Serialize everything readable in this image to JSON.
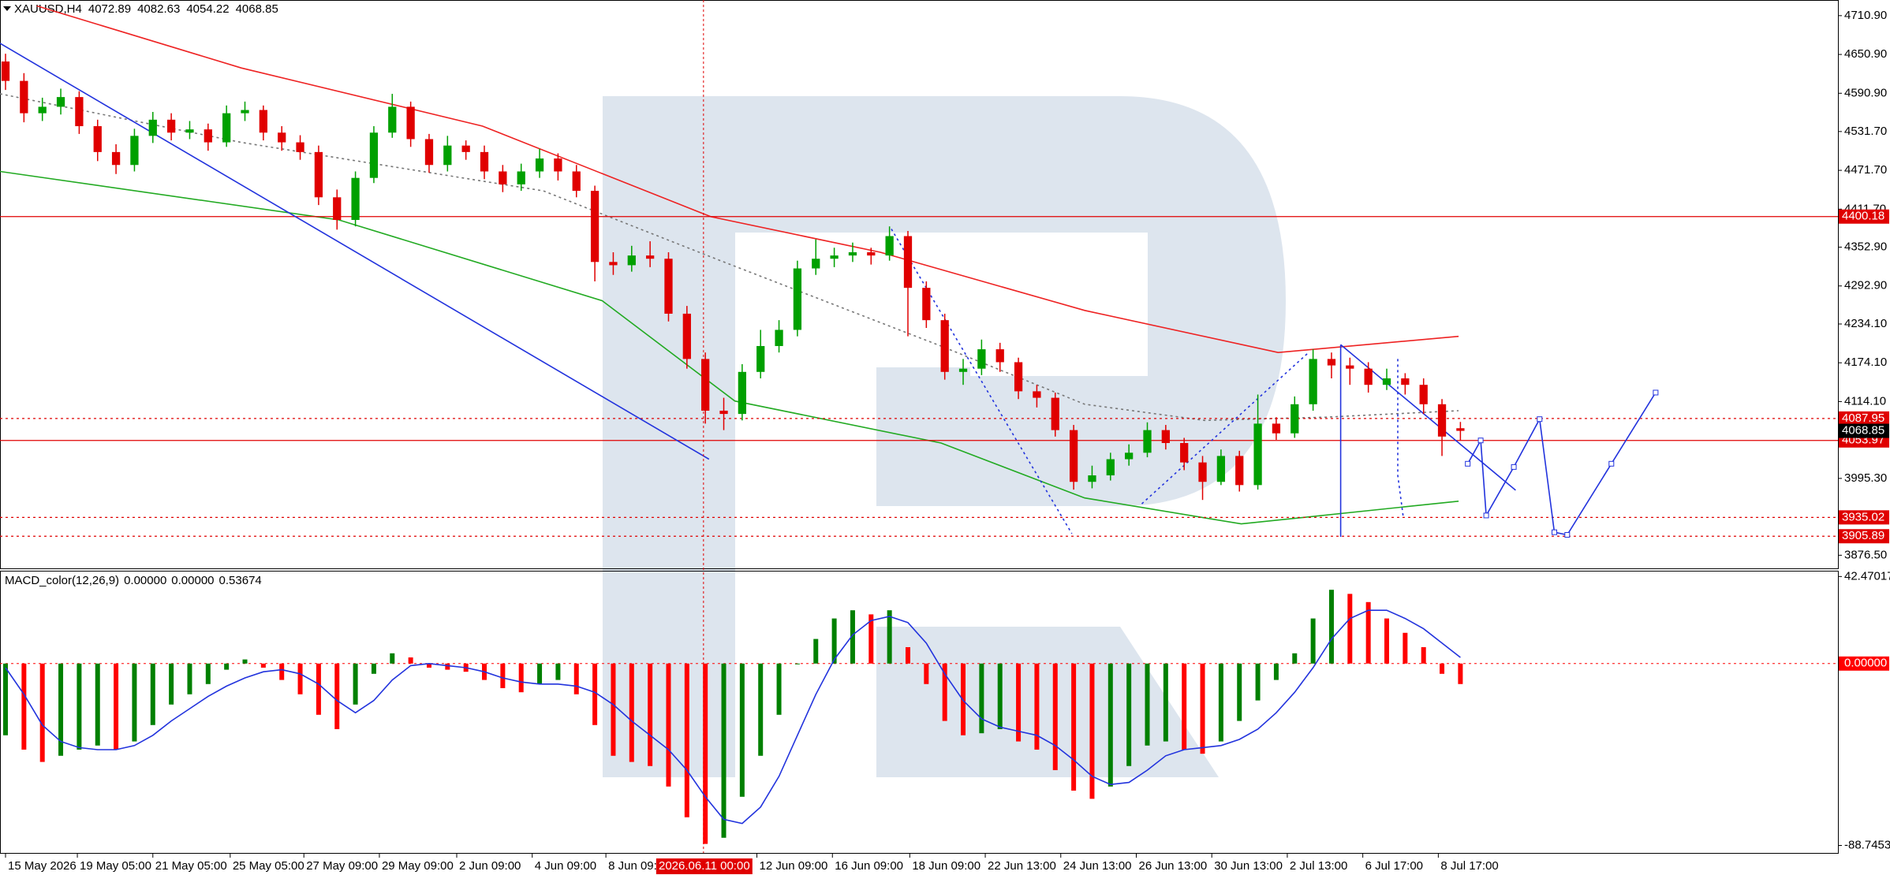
{
  "chart_data": [
    {
      "type": "candlestick",
      "title": "XAUUSD,H4",
      "up_color": "#00a000",
      "down_color": "#e00000",
      "open": [
        4640,
        4610,
        4560,
        4570,
        4585,
        4540,
        4500,
        4480,
        4525,
        4550,
        4530,
        4535,
        4515,
        4560,
        4565,
        4530,
        4515,
        4500,
        4430,
        4395,
        4460,
        4530,
        4570,
        4520,
        4480,
        4510,
        4500,
        4470,
        4450,
        4470,
        4490,
        4470,
        4440,
        4330,
        4325,
        4340,
        4335,
        4250,
        4180,
        4100,
        4095,
        4160,
        4200,
        4225,
        4320,
        4335,
        4340,
        4345,
        4340,
        4370,
        4290,
        4240,
        4160,
        4165,
        4195,
        4175,
        4130,
        4120,
        4070,
        3990,
        4000,
        4025,
        4035,
        4070,
        4050,
        4020,
        3990,
        4030,
        3985,
        4080,
        4065,
        4110,
        4180,
        4170,
        4165,
        4140,
        4150,
        4140,
        4110,
        4072.89
      ],
      "high": [
        4652,
        4622,
        4584,
        4598,
        4594,
        4550,
        4512,
        4536,
        4562,
        4560,
        4548,
        4544,
        4572,
        4578,
        4572,
        4540,
        4526,
        4510,
        4442,
        4470,
        4540,
        4590,
        4578,
        4528,
        4525,
        4518,
        4510,
        4480,
        4482,
        4505,
        4498,
        4480,
        4448,
        4345,
        4355,
        4362,
        4345,
        4262,
        4190,
        4120,
        4172,
        4225,
        4240,
        4332,
        4365,
        4352,
        4360,
        4352,
        4385,
        4378,
        4300,
        4250,
        4180,
        4210,
        4205,
        4182,
        4140,
        4128,
        4078,
        4015,
        4035,
        4048,
        4082,
        4078,
        4058,
        4030,
        4040,
        4038,
        4125,
        4090,
        4122,
        4195,
        4190,
        4182,
        4175,
        4165,
        4158,
        4150,
        4118,
        4082.63
      ],
      "low": [
        4596,
        4546,
        4548,
        4558,
        4528,
        4486,
        4466,
        4470,
        4514,
        4518,
        4520,
        4502,
        4508,
        4548,
        4518,
        4502,
        4488,
        4418,
        4380,
        4385,
        4452,
        4522,
        4508,
        4468,
        4470,
        4488,
        4458,
        4438,
        4440,
        4460,
        4456,
        4430,
        4300,
        4310,
        4315,
        4322,
        4238,
        4165,
        4080,
        4070,
        4085,
        4150,
        4190,
        4215,
        4310,
        4322,
        4330,
        4326,
        4332,
        4215,
        4228,
        4148,
        4140,
        4155,
        4160,
        4118,
        4105,
        4060,
        3978,
        3980,
        3992,
        4015,
        4028,
        4040,
        4008,
        3962,
        3985,
        3975,
        3978,
        4055,
        4058,
        4100,
        4150,
        4140,
        4128,
        4132,
        4125,
        4095,
        4030,
        4054.22
      ],
      "close": [
        4610,
        4560,
        4570,
        4585,
        4540,
        4500,
        4480,
        4525,
        4550,
        4530,
        4535,
        4515,
        4560,
        4565,
        4530,
        4515,
        4500,
        4430,
        4395,
        4460,
        4530,
        4570,
        4520,
        4480,
        4510,
        4500,
        4470,
        4450,
        4470,
        4490,
        4470,
        4440,
        4330,
        4325,
        4340,
        4335,
        4250,
        4180,
        4100,
        4095,
        4160,
        4200,
        4225,
        4320,
        4335,
        4340,
        4345,
        4340,
        4370,
        4290,
        4240,
        4160,
        4165,
        4195,
        4175,
        4130,
        4120,
        4070,
        3990,
        4000,
        4025,
        4035,
        4070,
        4050,
        4020,
        3990,
        4030,
        3985,
        4080,
        4065,
        4110,
        4180,
        4170,
        4165,
        4140,
        4150,
        4140,
        4110,
        4060,
        4068.85
      ],
      "xlim": [
        -0.3,
        99.5
      ],
      "ylim": [
        3856.2,
        4735.1
      ],
      "yticks": [
        {
          "value": 4710.9,
          "label": "4710.90"
        },
        {
          "value": 4650.9,
          "label": "4650.90"
        },
        {
          "value": 4590.9,
          "label": "4590.90"
        },
        {
          "value": 4531.7,
          "label": "4531.70"
        },
        {
          "value": 4471.7,
          "label": "4471.70"
        },
        {
          "value": 4411.7,
          "label": "4411.70"
        },
        {
          "value": 4352.9,
          "label": "4352.90"
        },
        {
          "value": 4292.9,
          "label": "4292.90"
        },
        {
          "value": 4234.1,
          "label": "4234.10"
        },
        {
          "value": 4174.1,
          "label": "4174.10"
        },
        {
          "value": 4114.1,
          "label": "4114.10"
        },
        {
          "value": 3995.3,
          "label": "3995.30"
        },
        {
          "value": 3876.5,
          "label": "3876.50"
        }
      ],
      "lines": [
        {
          "color": "#ee2222",
          "style": "solid",
          "x": [
            1.7,
            12.8,
            25.9,
            38.3,
            47.5,
            58.6,
            69.1,
            78.9
          ],
          "values": [
            4726,
            4630,
            4540,
            4400,
            4345,
            4255,
            4190,
            4215
          ]
        },
        {
          "color": "#22aa22",
          "style": "solid",
          "x": [
            -0.3,
            18.1,
            32.4,
            39.6,
            50.8,
            58.6,
            67.1,
            78.9
          ],
          "values": [
            4470,
            4395,
            4270,
            4115,
            4050,
            3965,
            3925,
            3960
          ]
        },
        {
          "color": "#777777",
          "style": "dotted",
          "x": [
            -0.3,
            12.8,
            29.2,
            39.0,
            50.8,
            58.6,
            65.1,
            71.7,
            78.9
          ],
          "values": [
            4590,
            4515,
            4440,
            4330,
            4200,
            4110,
            4085,
            4090,
            4100
          ]
        }
      ],
      "price_lines": [
        {
          "value": 4400.18,
          "color": "#e00000",
          "style": "solid"
        },
        {
          "value": 4087.95,
          "color": "#e00000",
          "style": "dotted"
        },
        {
          "value": 4053.97,
          "color": "#e00000",
          "style": "solid"
        },
        {
          "value": 3935.02,
          "color": "#e00000",
          "style": "dotted"
        },
        {
          "value": 3905.89,
          "color": "#e00000",
          "style": "dotted"
        }
      ],
      "last_price_color": "#000000",
      "drawings": [
        {
          "color": "#2233dd",
          "style": "solid",
          "x": [
            -0.3,
            38.2
          ],
          "values": [
            4668,
            4025
          ]
        },
        {
          "color": "#2233dd",
          "style": "solid",
          "x": [
            72.5,
            82.0
          ],
          "values": [
            4202,
            3977
          ]
        },
        {
          "color": "#2233dd",
          "style": "solid",
          "x": [
            72.5,
            72.5
          ],
          "values": [
            4202,
            3905
          ]
        },
        {
          "color": "#2233dd",
          "style": "dotted",
          "x": [
            48.1,
            57.9
          ],
          "values": [
            4381,
            3910
          ]
        },
        {
          "color": "#2233dd",
          "style": "dotted",
          "x": [
            61.7,
            70.8
          ],
          "values": [
            3956,
            4191
          ]
        },
        {
          "color": "#2233dd",
          "style": "dotted",
          "x": [
            75.6,
            75.6,
            75.9
          ],
          "values": [
            4180,
            4000,
            3935
          ]
        },
        {
          "color": "#2233dd",
          "style": "solid",
          "x": [
            79.4,
            80.1,
            80.4,
            81.9,
            83.3,
            84.1,
            84.8,
            87.2,
            89.6
          ],
          "values": [
            4018,
            4054,
            3938,
            4013,
            4087,
            3912,
            3908,
            4018,
            4128
          ]
        }
      ],
      "xticks": [
        {
          "value": 0,
          "label": "15 May 2026"
        },
        {
          "value": 3.9,
          "label": "19 May 05:00"
        },
        {
          "value": 8.0,
          "label": "21 May 05:00"
        },
        {
          "value": 12.2,
          "label": "25 May 05:00"
        },
        {
          "value": 16.2,
          "label": "27 May 09:00"
        },
        {
          "value": 20.3,
          "label": "29 May 09:00"
        },
        {
          "value": 24.5,
          "label": "2 Jun 09:00"
        },
        {
          "value": 28.6,
          "label": "4 Jun 09:00"
        },
        {
          "value": 32.6,
          "label": "8 Jun 09:00"
        },
        {
          "value": 40.8,
          "label": "12 Jun 09:00"
        },
        {
          "value": 44.9,
          "label": "16 Jun 09:00"
        },
        {
          "value": 49.1,
          "label": "18 Jun 09:00"
        },
        {
          "value": 53.2,
          "label": "22 Jun 13:00"
        },
        {
          "value": 57.3,
          "label": "24 Jun 13:00"
        },
        {
          "value": 61.4,
          "label": "26 Jun 13:00"
        },
        {
          "value": 65.5,
          "label": "30 Jun 13:00"
        },
        {
          "value": 69.6,
          "label": "2 Jul 13:00"
        },
        {
          "value": 73.7,
          "label": "6 Jul 17:00"
        },
        {
          "value": 77.8,
          "label": "8 Jul 17:00"
        }
      ],
      "crosshair": {
        "value": 37.9,
        "label": "2026.06.11 00:00",
        "color": "#e00000"
      }
    },
    {
      "type": "macd",
      "title": "MACD_color(12,26,9)",
      "readouts": [
        "0.00000",
        "0.00000",
        "0.53674"
      ],
      "up_color": "#008000",
      "down_color": "#ff0000",
      "values": [
        -35,
        -42,
        -48,
        -45,
        -42,
        -40,
        -42,
        -38,
        -30,
        -20,
        -15,
        -10,
        -3,
        2,
        -2,
        -8,
        -15,
        -25,
        -32,
        -20,
        -5,
        5,
        3,
        -2,
        -3,
        -4,
        -8,
        -12,
        -14,
        -10,
        -8,
        -15,
        -30,
        -45,
        -48,
        -50,
        -60,
        -75,
        -88,
        -85,
        -65,
        -45,
        -25,
        0,
        12,
        22,
        26,
        24,
        26,
        8,
        -10,
        -28,
        -35,
        -34,
        -32,
        -38,
        -42,
        -52,
        -62,
        -66,
        -60,
        -50,
        -40,
        -38,
        -42,
        -44,
        -38,
        -28,
        -18,
        -8,
        5,
        22,
        36,
        34,
        30,
        22,
        15,
        8,
        -5,
        -10
      ],
      "signal_color": "#2233dd",
      "signal": [
        -2,
        -15,
        -30,
        -38,
        -41,
        -42,
        -42,
        -40,
        -35,
        -28,
        -22,
        -16,
        -11,
        -7,
        -4,
        -3,
        -5,
        -10,
        -18,
        -24,
        -18,
        -8,
        -1,
        0,
        -1,
        -2,
        -4,
        -7,
        -9,
        -10,
        -10,
        -11,
        -14,
        -20,
        -28,
        -35,
        -42,
        -52,
        -65,
        -76,
        -78,
        -70,
        -55,
        -35,
        -15,
        2,
        14,
        21,
        23,
        20,
        10,
        -5,
        -18,
        -27,
        -31,
        -33,
        -35,
        -40,
        -47,
        -55,
        -59,
        -58,
        -52,
        -45,
        -42,
        -41,
        -40,
        -37,
        -32,
        -24,
        -14,
        -2,
        12,
        22,
        26,
        26,
        22,
        17,
        10,
        3
      ],
      "zero_line_color": "#ff0000",
      "ylim": [
        -92.4,
        45.3
      ],
      "yticks": [
        42.47017,
        {
          "value": 0,
          "label": "0.00000"
        },
        -88.74539
      ]
    }
  ]
}
